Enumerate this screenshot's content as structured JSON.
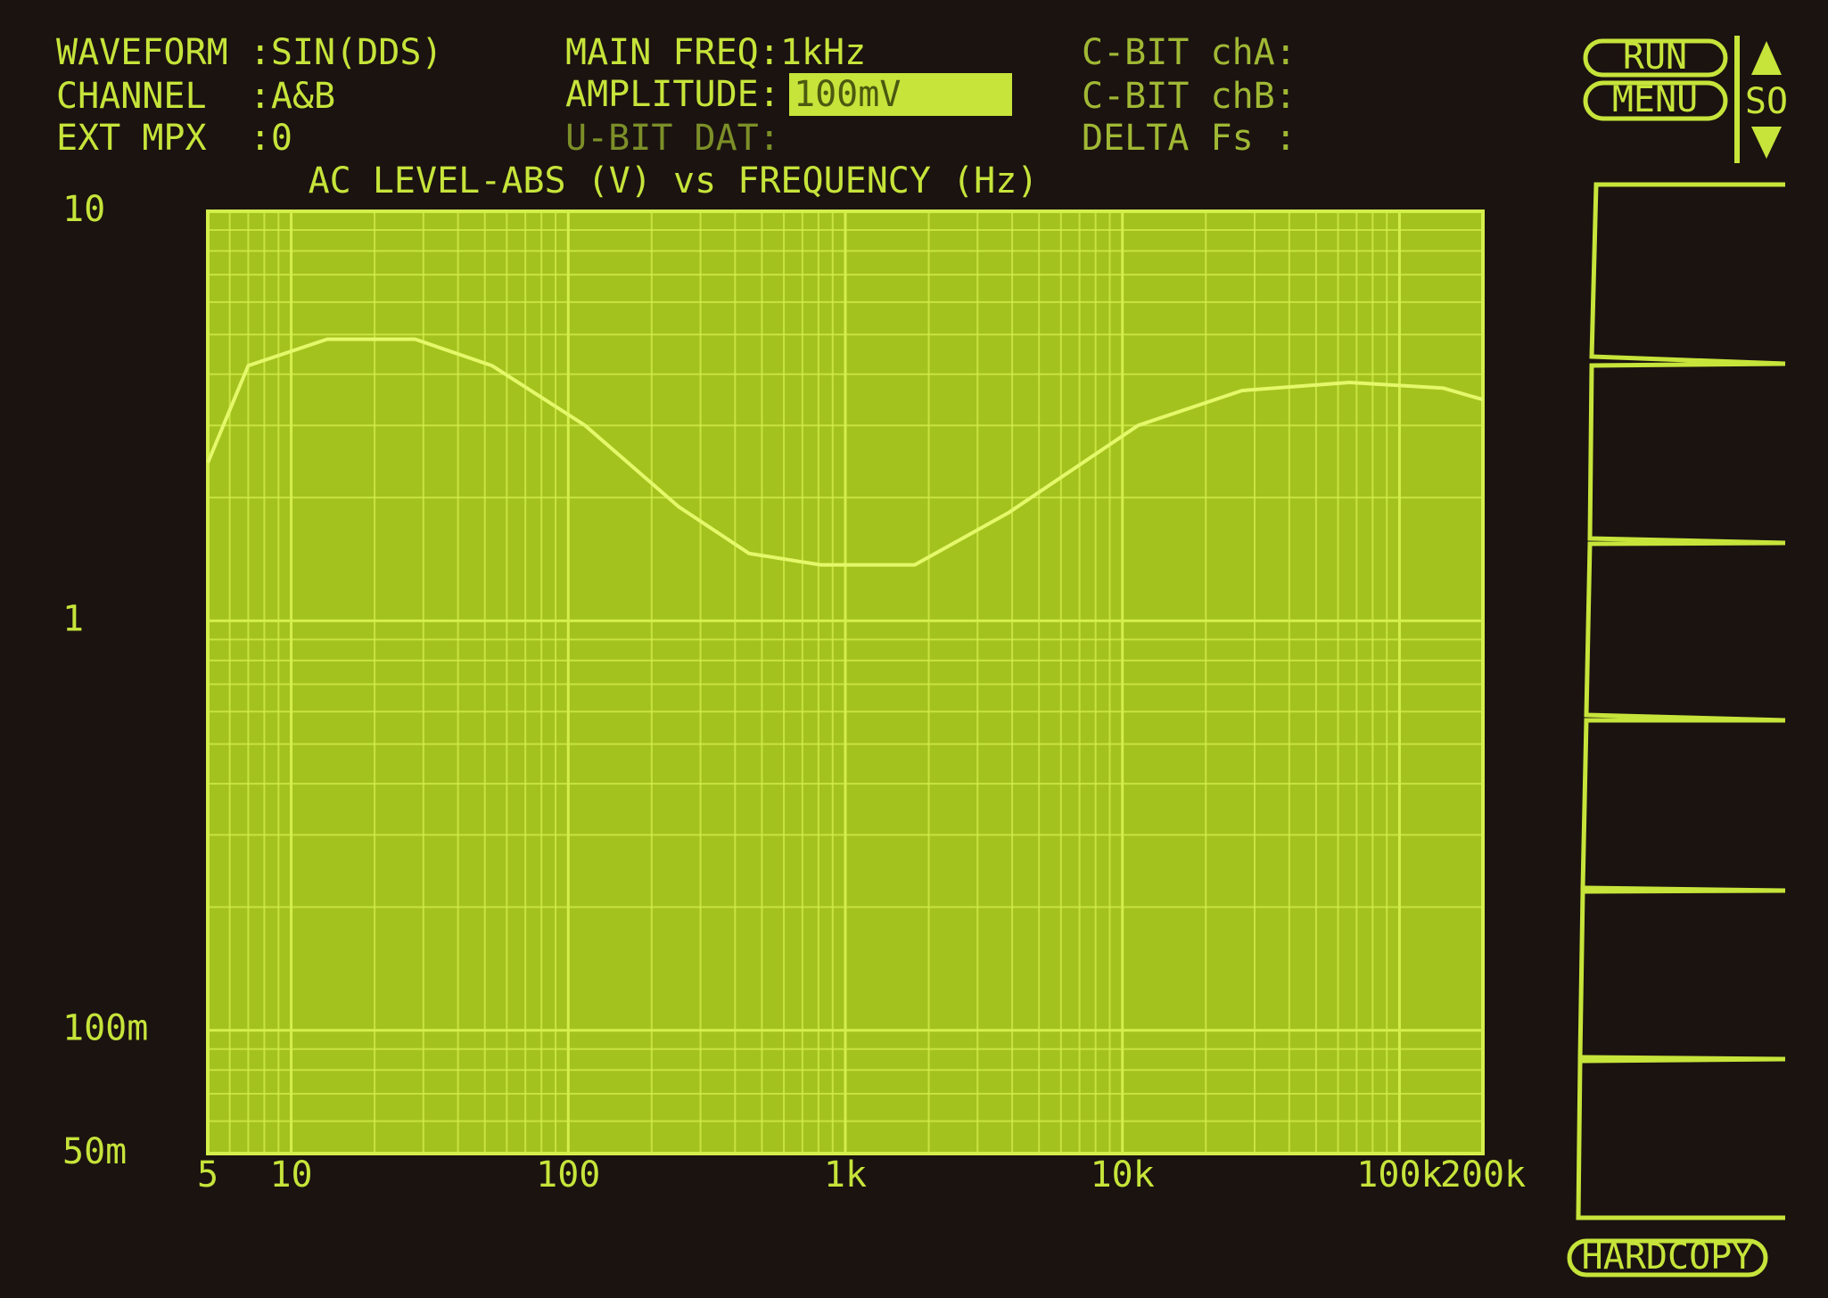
{
  "header": {
    "waveform": "WAVEFORM :SIN(DDS)",
    "channel": "CHANNEL  :A&B",
    "ext_mpx": "EXT MPX  :0",
    "main_freq": "MAIN FREQ:1kHz",
    "amplitude_label": "AMPLITUDE:",
    "amplitude_value": "100mV",
    "u_bit": "U-BIT DAT:",
    "c_bit_a": "C-BIT chA:",
    "c_bit_b": "C-BIT chB:",
    "delta_fs": "DELTA Fs :"
  },
  "softkeys": {
    "run": "RUN",
    "menu": "MENU",
    "so": "SO",
    "hardcopy": "HARDCOPY"
  },
  "chart_data": {
    "type": "line",
    "title": "AC LEVEL-ABS (V) vs FREQUENCY (Hz)",
    "x": [
      5,
      7,
      13.5,
      28,
      53,
      115,
      250,
      450,
      815,
      1780,
      3900,
      11400,
      27000,
      66000,
      144000,
      200000
    ],
    "values": [
      2.43,
      4.2,
      4.87,
      4.87,
      4.2,
      3.0,
      1.9,
      1.46,
      1.37,
      1.37,
      1.84,
      3.0,
      3.65,
      3.82,
      3.7,
      3.47
    ],
    "color": "#e4f86a",
    "xscale": "log",
    "yscale": "log",
    "xlim": [
      5,
      200000
    ],
    "ylim": [
      0.05,
      10
    ],
    "xticks": [
      5,
      10,
      100,
      {
        "value": 1000,
        "label": "1k"
      },
      {
        "value": 10000,
        "label": "10k"
      },
      {
        "value": 100000,
        "label": "100k"
      },
      {
        "value": 200000,
        "label": "200k"
      }
    ],
    "yticks": [
      10,
      1,
      {
        "value": 0.1,
        "label": "100m"
      },
      {
        "value": 0.05,
        "label": "50m"
      }
    ],
    "grid": true,
    "minor_grid": true
  }
}
